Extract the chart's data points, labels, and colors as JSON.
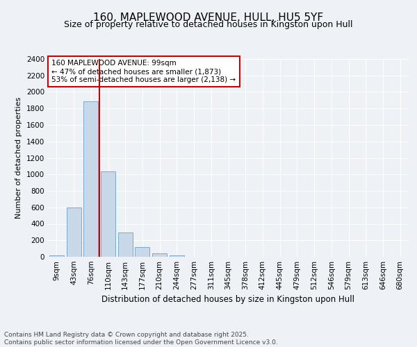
{
  "title": "160, MAPLEWOOD AVENUE, HULL, HU5 5YF",
  "subtitle": "Size of property relative to detached houses in Kingston upon Hull",
  "xlabel": "Distribution of detached houses by size in Kingston upon Hull",
  "ylabel": "Number of detached properties",
  "footer": "Contains HM Land Registry data © Crown copyright and database right 2025.\nContains public sector information licensed under the Open Government Licence v3.0.",
  "categories": [
    "9sqm",
    "43sqm",
    "76sqm",
    "110sqm",
    "143sqm",
    "177sqm",
    "210sqm",
    "244sqm",
    "277sqm",
    "311sqm",
    "345sqm",
    "378sqm",
    "412sqm",
    "445sqm",
    "479sqm",
    "512sqm",
    "546sqm",
    "579sqm",
    "613sqm",
    "646sqm",
    "680sqm"
  ],
  "values": [
    15,
    600,
    1890,
    1040,
    295,
    120,
    40,
    20,
    0,
    0,
    0,
    0,
    0,
    0,
    0,
    0,
    0,
    0,
    0,
    0,
    0
  ],
  "bar_color": "#c8d8e8",
  "bar_edge_color": "#7aabcc",
  "vline_color": "#cc0000",
  "annotation_text": "160 MAPLEWOOD AVENUE: 99sqm\n← 47% of detached houses are smaller (1,873)\n53% of semi-detached houses are larger (2,138) →",
  "annotation_box_color": "#ffffff",
  "annotation_box_edge_color": "#cc0000",
  "ylim": [
    0,
    2400
  ],
  "yticks": [
    0,
    200,
    400,
    600,
    800,
    1000,
    1200,
    1400,
    1600,
    1800,
    2000,
    2200,
    2400
  ],
  "bg_color": "#eef2f7",
  "plot_bg_color": "#eef2f7",
  "grid_color": "#ffffff",
  "title_fontsize": 11,
  "subtitle_fontsize": 9,
  "ylabel_fontsize": 8,
  "xlabel_fontsize": 8.5,
  "tick_fontsize": 7.5,
  "annotation_fontsize": 7.5,
  "footer_fontsize": 6.5
}
